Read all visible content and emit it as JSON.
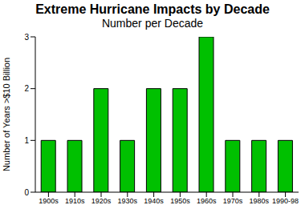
{
  "chart_data": {
    "type": "bar",
    "title": "Extreme Hurricane Impacts by Decade",
    "subtitle": "Number per Decade",
    "y_label": "Number of Years >$10 Billion",
    "categories": [
      "1900s",
      "1910s",
      "1920s",
      "1930s",
      "1940s",
      "1950s",
      "1960s",
      "1970s",
      "1980s",
      "1990-98"
    ],
    "values": [
      1,
      1,
      2,
      1,
      2,
      2,
      3,
      1,
      1,
      1
    ],
    "color": "#00c000",
    "ylim": [
      0,
      3
    ],
    "yticks": [
      0,
      1,
      2,
      3
    ],
    "grid": false
  }
}
